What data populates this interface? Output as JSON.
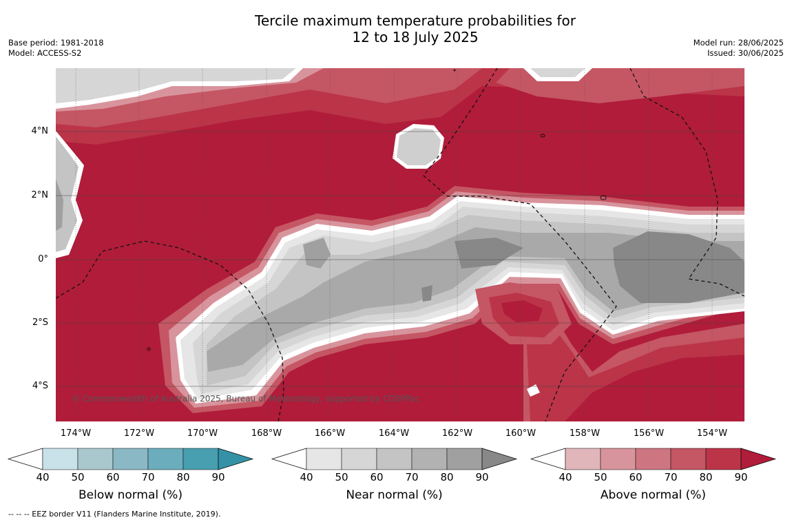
{
  "title_line1": "Tercile maximum temperature probabilities for",
  "title_line2": "12 to 18 July 2025",
  "meta_left": {
    "base_period": "Base period: 1981-2018",
    "model": "Model: ACCESS-S2"
  },
  "meta_right": {
    "model_run": "Model run: 28/06/2025",
    "issued": "Issued: 30/06/2025"
  },
  "copyright": "© Commonwealth of Australia 2025, Bureau of Meteorology, supported by COSPPac",
  "lat_labels": [
    "4°N",
    "2°N",
    "0°",
    "2°S",
    "4°S"
  ],
  "lon_labels": [
    "174°W",
    "172°W",
    "170°W",
    "168°W",
    "166°W",
    "164°W",
    "162°W",
    "160°W",
    "158°W",
    "156°W",
    "154°W"
  ],
  "colorbars": [
    {
      "title": "Below normal (%)",
      "ticks": [
        "40",
        "50",
        "60",
        "70",
        "80",
        "90"
      ],
      "colors": [
        "#ffffff",
        "#c9e1e8",
        "#a8c8ce",
        "#8ab8c5",
        "#6badbc",
        "#489fb0",
        "#3592a6"
      ]
    },
    {
      "title": "Near normal (%)",
      "ticks": [
        "40",
        "50",
        "60",
        "70",
        "80",
        "90"
      ],
      "colors": [
        "#ffffff",
        "#e6e6e6",
        "#d6d6d6",
        "#c4c4c4",
        "#b2b2b2",
        "#a0a0a0",
        "#888888"
      ]
    },
    {
      "title": "Above normal (%)",
      "ticks": [
        "40",
        "50",
        "60",
        "70",
        "80",
        "90"
      ],
      "colors": [
        "#ffffff",
        "#e0b6bb",
        "#d8949c",
        "#cd7580",
        "#c55664",
        "#bb3448",
        "#b01c3a"
      ]
    }
  ],
  "footnote": "--  --  -- EEZ border V11 (Flanders Marine Institute, 2019)."
}
